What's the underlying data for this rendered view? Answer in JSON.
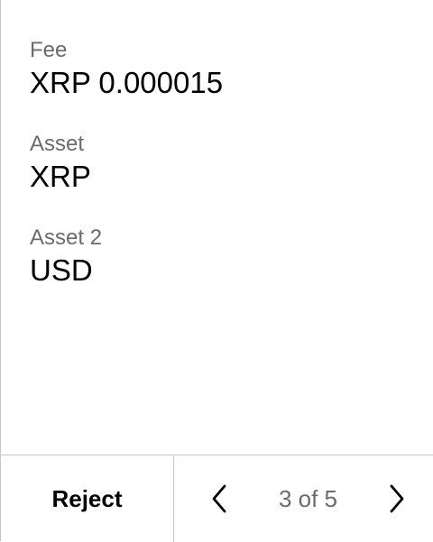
{
  "fields": [
    {
      "label": "Fee",
      "value": "XRP 0.000015"
    },
    {
      "label": "Asset",
      "value": "XRP"
    },
    {
      "label": "Asset 2",
      "value": "USD"
    }
  ],
  "footer": {
    "reject_label": "Reject",
    "page_indicator": "3 of 5",
    "prev_icon": "chevron-left-icon",
    "next_icon": "chevron-right-icon"
  },
  "colors": {
    "label": "#6b6b6b",
    "value": "#000000",
    "divider": "#c8c8c8"
  }
}
